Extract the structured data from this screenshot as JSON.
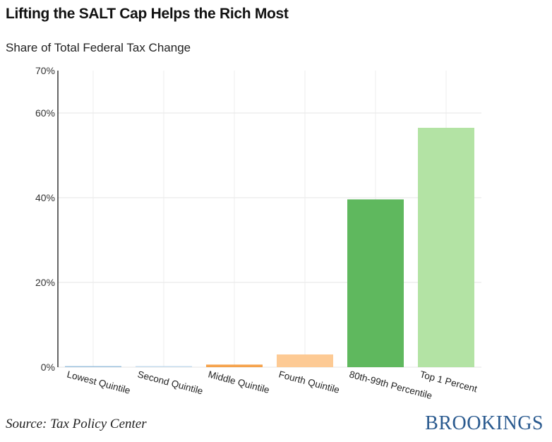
{
  "title": "Lifting the SALT Cap Helps the Rich Most",
  "subtitle": "Share of Total Federal Tax Change",
  "source": "Source: Tax Policy Center",
  "logo": "BROOKINGS",
  "chart_data": {
    "type": "bar",
    "title": "Lifting the SALT Cap Helps the Rich Most",
    "subtitle": "Share of Total Federal Tax Change",
    "xlabel": "",
    "ylabel": "",
    "unit": "%",
    "ylim": [
      0,
      70
    ],
    "yticks": [
      0,
      20,
      40,
      60
    ],
    "ytick_labels": [
      "0%",
      "20%",
      "40%",
      "60%"
    ],
    "top_label": "70%",
    "grid": true,
    "categories": [
      "Lowest Quintile",
      "Second Quintile",
      "Middle Quintile",
      "Fourth Quintile",
      "80th-99th Percentile",
      "Top 1 Percent"
    ],
    "values": [
      0.2,
      0.1,
      0.6,
      3.0,
      39.6,
      56.5
    ],
    "colors": [
      "#9fc3df",
      "#c6dcec",
      "#f5a24b",
      "#fdca94",
      "#5fb85e",
      "#b3e3a4"
    ]
  }
}
